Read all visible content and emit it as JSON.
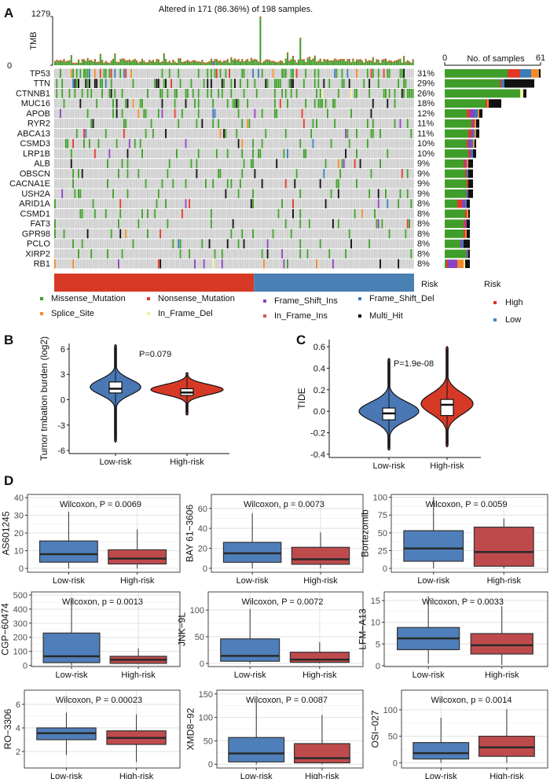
{
  "panel_labels": {
    "a": "A",
    "b": "B",
    "c": "C",
    "d": "D"
  },
  "oncoplot": {
    "title": "Altered in 171 (86.36%) of 198 samples.",
    "n_samples": 198,
    "tmb": {
      "label": "TMB",
      "max_label": "1279",
      "min_label": "0",
      "max": 1279,
      "peaks": [
        {
          "sample": 113,
          "value": 1279
        },
        {
          "sample": 135,
          "value": 720
        }
      ]
    },
    "bar_axis": {
      "title": "No. of samples",
      "min_label": "0",
      "max_label": "61",
      "max": 61
    },
    "mutation_types": [
      {
        "name": "Missense_Mutation",
        "color": "#3f9e2a"
      },
      {
        "name": "Nonsense_Mutation",
        "color": "#e0392a"
      },
      {
        "name": "Frame_Shift_Ins",
        "color": "#8b42c2"
      },
      {
        "name": "Frame_Shift_Del",
        "color": "#3c7cb9"
      },
      {
        "name": "Splice_Site",
        "color": "#f28a2c"
      },
      {
        "name": "In_Frame_Del",
        "color": "#f5ef9f"
      },
      {
        "name": "In_Frame_Ins",
        "color": "#d45660"
      },
      {
        "name": "Multi_Hit",
        "color": "#111111"
      }
    ],
    "genes": [
      {
        "name": "TP53",
        "pct": "31%",
        "counts": [
          40,
          8,
          0,
          7,
          5,
          0,
          0,
          1
        ]
      },
      {
        "name": "TTN",
        "pct": "29%",
        "counts": [
          35,
          1,
          0,
          2,
          0,
          0,
          0,
          19
        ]
      },
      {
        "name": "CTNNB1",
        "pct": "26%",
        "counts": [
          48,
          0,
          0,
          0,
          0,
          2,
          0,
          2
        ]
      },
      {
        "name": "MUC16",
        "pct": "18%",
        "counts": [
          26,
          1,
          0,
          0,
          1,
          0,
          0,
          8
        ]
      },
      {
        "name": "APOB",
        "pct": "12%",
        "counts": [
          14,
          2,
          3,
          2,
          1,
          0,
          0,
          2
        ]
      },
      {
        "name": "RYR2",
        "pct": "11%",
        "counts": [
          17,
          1,
          1,
          0,
          1,
          0,
          0,
          2
        ]
      },
      {
        "name": "ABCA13",
        "pct": "11%",
        "counts": [
          15,
          2,
          1,
          1,
          1,
          0,
          0,
          2
        ]
      },
      {
        "name": "CSMD3",
        "pct": "10%",
        "counts": [
          14,
          1,
          2,
          1,
          1,
          0,
          0,
          1
        ]
      },
      {
        "name": "LRP1B",
        "pct": "10%",
        "counts": [
          15,
          1,
          1,
          1,
          0,
          0,
          0,
          2
        ]
      },
      {
        "name": "ALB",
        "pct": "9%",
        "counts": [
          12,
          1,
          1,
          0,
          1,
          0,
          0,
          3
        ]
      },
      {
        "name": "OBSCN",
        "pct": "9%",
        "counts": [
          13,
          1,
          0,
          1,
          0,
          0,
          0,
          3
        ]
      },
      {
        "name": "CACNA1E",
        "pct": "9%",
        "counts": [
          14,
          1,
          0,
          0,
          0,
          0,
          0,
          3
        ]
      },
      {
        "name": "USH2A",
        "pct": "9%",
        "counts": [
          14,
          0,
          1,
          0,
          0,
          0,
          0,
          3
        ]
      },
      {
        "name": "ARID1A",
        "pct": "8%",
        "counts": [
          8,
          3,
          2,
          1,
          0,
          0,
          0,
          2
        ]
      },
      {
        "name": "CSMD1",
        "pct": "8%",
        "counts": [
          13,
          1,
          0,
          0,
          1,
          0,
          0,
          1
        ]
      },
      {
        "name": "FAT3",
        "pct": "8%",
        "counts": [
          12,
          1,
          1,
          0,
          0,
          0,
          0,
          2
        ]
      },
      {
        "name": "GPR98",
        "pct": "8%",
        "counts": [
          12,
          1,
          0,
          0,
          1,
          0,
          0,
          2
        ]
      },
      {
        "name": "PCLO",
        "pct": "8%",
        "counts": [
          10,
          0,
          1,
          1,
          0,
          0,
          0,
          4
        ]
      },
      {
        "name": "XIRP2",
        "pct": "8%",
        "counts": [
          14,
          0,
          1,
          0,
          0,
          0,
          0,
          1
        ]
      },
      {
        "name": "RB1",
        "pct": "8%",
        "counts": [
          1,
          1,
          6,
          0,
          4,
          1,
          0,
          3
        ]
      }
    ],
    "risk": {
      "label": "Risk",
      "legend_title": "Risk",
      "high_fraction": 0.555,
      "groups": [
        {
          "name": "High",
          "color": "#d63a26"
        },
        {
          "name": "Low",
          "color": "#4a80b4"
        }
      ]
    }
  },
  "chart_data": [
    {
      "type": "violin",
      "id": "B",
      "ylabel": "Tumor tmbation burden (log2)",
      "pvalue_label": "P=0.079",
      "yticks": [
        6,
        3,
        0,
        -3,
        -6
      ],
      "ytick_labels": [
        "6",
        "3",
        "0",
        "-3",
        "-6"
      ],
      "ylim": [
        -6.37,
        6.65
      ],
      "categories": [
        "Low-risk",
        "High-risk"
      ],
      "groups": [
        {
          "name": "Low-risk",
          "color": "#4a78b5",
          "range": [
            -5.0,
            6.5
          ],
          "mode": 1.5,
          "sd": 0.9,
          "peak_rel": 0.7,
          "box": {
            "q1": 0.8,
            "median": 1.3,
            "q3": 2.1
          }
        },
        {
          "name": "High-risk",
          "color": "#d63a26",
          "range": [
            -1.8,
            3.2
          ],
          "mode": 1.2,
          "sd": 0.6,
          "peak_rel": 1.0,
          "box": {
            "q1": 0.5,
            "median": 0.85,
            "q3": 1.3
          }
        }
      ]
    },
    {
      "type": "violin",
      "id": "C",
      "ylabel": "TIDE",
      "pvalue_label": "P=1.9e-08",
      "yticks": [
        0.6,
        0.4,
        0.2,
        0.0,
        -0.2,
        -0.4
      ],
      "ytick_labels": [
        "0.6",
        "0.4",
        "0.2",
        "0.0",
        "-0.2",
        "-0.4"
      ],
      "ylim": [
        -0.43,
        0.666
      ],
      "categories": [
        "Low-risk",
        "High-risk"
      ],
      "groups": [
        {
          "name": "Low-risk",
          "color": "#4a78b5",
          "range": [
            -0.36,
            0.49
          ],
          "mode": 0.0,
          "sd": 0.085,
          "peak_rel": 1.0,
          "box": {
            "q1": -0.08,
            "median": -0.02,
            "q3": 0.03
          }
        },
        {
          "name": "High-risk",
          "color": "#d63a26",
          "range": [
            -0.33,
            0.6
          ],
          "mode": 0.07,
          "sd": 0.095,
          "peak_rel": 0.87,
          "box": {
            "q1": -0.04,
            "median": 0.06,
            "q3": 0.11
          }
        }
      ]
    },
    {
      "type": "box",
      "ylabel": "AS601245",
      "stat_label": "Wilcoxon, P = 0.0069",
      "yticks": [
        0,
        10,
        20,
        30,
        40
      ],
      "ylim": [
        -2.2,
        41.8
      ],
      "categories": [
        "Low-risk",
        "High-risk"
      ],
      "groups": [
        {
          "low": 0,
          "q1": 3.5,
          "median": 8,
          "q3": 15.5,
          "high": 32
        },
        {
          "low": 0,
          "q1": 2.5,
          "median": 5.5,
          "q3": 10.5,
          "high": 22
        }
      ]
    },
    {
      "type": "box",
      "ylabel": "BAY 61−3606",
      "stat_label": "Wilcoxon, p = 0.0073",
      "yticks": [
        0,
        20,
        40,
        60
      ],
      "ylim": [
        -4,
        74
      ],
      "categories": [
        "Low-risk",
        "High-risk"
      ],
      "groups": [
        {
          "low": 0,
          "q1": 6,
          "median": 15,
          "q3": 26,
          "high": 55
        },
        {
          "low": 0,
          "q1": 4,
          "median": 9,
          "q3": 21,
          "high": 36
        }
      ]
    },
    {
      "type": "box",
      "ylabel": "Bortezomib",
      "stat_label": "Wilcoxon, P = 0.0059",
      "yticks": [
        0,
        25,
        50,
        75,
        100
      ],
      "ylim": [
        -5.5,
        104
      ],
      "categories": [
        "Low-risk",
        "High-risk"
      ],
      "groups": [
        {
          "low": 0,
          "q1": 10,
          "median": 28,
          "q3": 53,
          "high": 100
        },
        {
          "low": 0,
          "q1": 3,
          "median": 23,
          "q3": 58,
          "high": 70
        }
      ]
    },
    {
      "type": "box",
      "ylabel": "CGP−60474",
      "stat_label": "Wilcoxon, p = 0.0013",
      "yticks": [
        0,
        100,
        200,
        300,
        400,
        500
      ],
      "ylim": [
        -8,
        522
      ],
      "categories": [
        "Low-risk",
        "High-risk"
      ],
      "groups": [
        {
          "low": 0,
          "q1": 20,
          "median": 65,
          "q3": 230,
          "high": 480
        },
        {
          "low": 10,
          "q1": 15,
          "median": 40,
          "q3": 65,
          "high": 120
        }
      ]
    },
    {
      "type": "box",
      "ylabel": "JNK−9L",
      "stat_label": "Wilcoxon, P = 0.0072",
      "yticks": [
        0,
        50,
        100
      ],
      "ylim": [
        -6,
        134
      ],
      "categories": [
        "Low-risk",
        "High-risk"
      ],
      "groups": [
        {
          "low": 0,
          "q1": 4,
          "median": 14,
          "q3": 46,
          "high": 102
        },
        {
          "low": 0,
          "q1": 2,
          "median": 7,
          "q3": 21,
          "high": 40
        }
      ]
    },
    {
      "type": "box",
      "ylabel": "LFM−A13",
      "stat_label": "Wilcoxon, P = 0.0033",
      "yticks": [
        0,
        5,
        10,
        15
      ],
      "ylim": [
        -0.2,
        17
      ],
      "categories": [
        "Low-risk",
        "High-risk"
      ],
      "groups": [
        {
          "low": 0.5,
          "q1": 3.7,
          "median": 6.3,
          "q3": 8.8,
          "high": 16
        },
        {
          "low": 0.2,
          "q1": 2.7,
          "median": 4.7,
          "q3": 7.4,
          "high": 13.7
        }
      ]
    },
    {
      "type": "box",
      "ylabel": "RO−3306",
      "stat_label": "Wilcoxon, P = 0.00023",
      "yticks": [
        2,
        4,
        6
      ],
      "ylim": [
        0.6,
        7.2
      ],
      "categories": [
        "Low-risk",
        "High-risk"
      ],
      "groups": [
        {
          "low": 1.7,
          "q1": 3.0,
          "median": 3.55,
          "q3": 4.0,
          "high": 5.3
        },
        {
          "low": 1.1,
          "q1": 2.6,
          "median": 3.15,
          "q3": 3.75,
          "high": 5.15
        }
      ]
    },
    {
      "type": "box",
      "ylabel": "XMD8−92",
      "stat_label": "Wilcoxon, P = 0.0087",
      "yticks": [
        0,
        50,
        100,
        150
      ],
      "ylim": [
        -8,
        158
      ],
      "categories": [
        "Low-risk",
        "High-risk"
      ],
      "groups": [
        {
          "low": 0,
          "q1": 5,
          "median": 23,
          "q3": 57,
          "high": 132
        },
        {
          "low": 0,
          "q1": 3,
          "median": 13,
          "q3": 44,
          "high": 105
        }
      ]
    },
    {
      "type": "box",
      "ylabel": "OSI−027",
      "stat_label": "Wilcoxon, p = 0.0014",
      "yticks": [
        0,
        50,
        100
      ],
      "ylim": [
        -10,
        137
      ],
      "categories": [
        "Low-risk",
        "High-risk"
      ],
      "groups": [
        {
          "low": 0,
          "q1": 7,
          "median": 18,
          "q3": 38,
          "high": 85
        },
        {
          "low": 0,
          "q1": 12,
          "median": 29,
          "q3": 50,
          "high": 101
        }
      ]
    }
  ],
  "box_colors": [
    "#4f7fba",
    "#bf4a4c"
  ]
}
